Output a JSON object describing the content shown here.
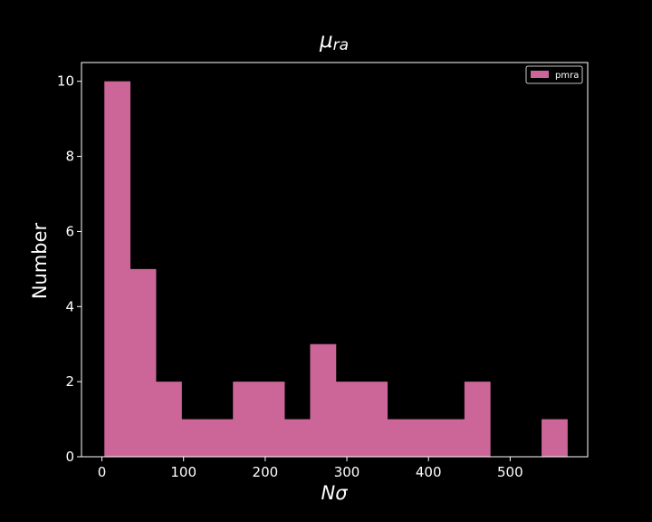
{
  "colors": {
    "background": "#000000",
    "bar": "#cc6699",
    "axes": "#ffffff",
    "text": "#ffffff"
  },
  "chart_data": {
    "type": "bar",
    "subtype": "histogram",
    "title_main": "μ",
    "title_sub": "ra",
    "xlabel": "Nσ",
    "ylabel": "Number",
    "xlim": [
      -25,
      595
    ],
    "ylim": [
      0,
      10.5
    ],
    "x_ticks": [
      0,
      100,
      200,
      300,
      400,
      500
    ],
    "y_ticks": [
      0,
      2,
      4,
      6,
      8,
      10
    ],
    "grid": false,
    "legend_position": "top-right",
    "series": [
      {
        "name": "pmra",
        "bin_edges": [
          3,
          34.5,
          66,
          97.5,
          129,
          160.5,
          192,
          223.5,
          255,
          286.5,
          318,
          349.5,
          381,
          412.5,
          444,
          475.5,
          507,
          538.5,
          570
        ],
        "counts": [
          10,
          5,
          2,
          1,
          1,
          2,
          2,
          1,
          3,
          2,
          2,
          1,
          1,
          1,
          2,
          0,
          0,
          1
        ]
      }
    ]
  }
}
